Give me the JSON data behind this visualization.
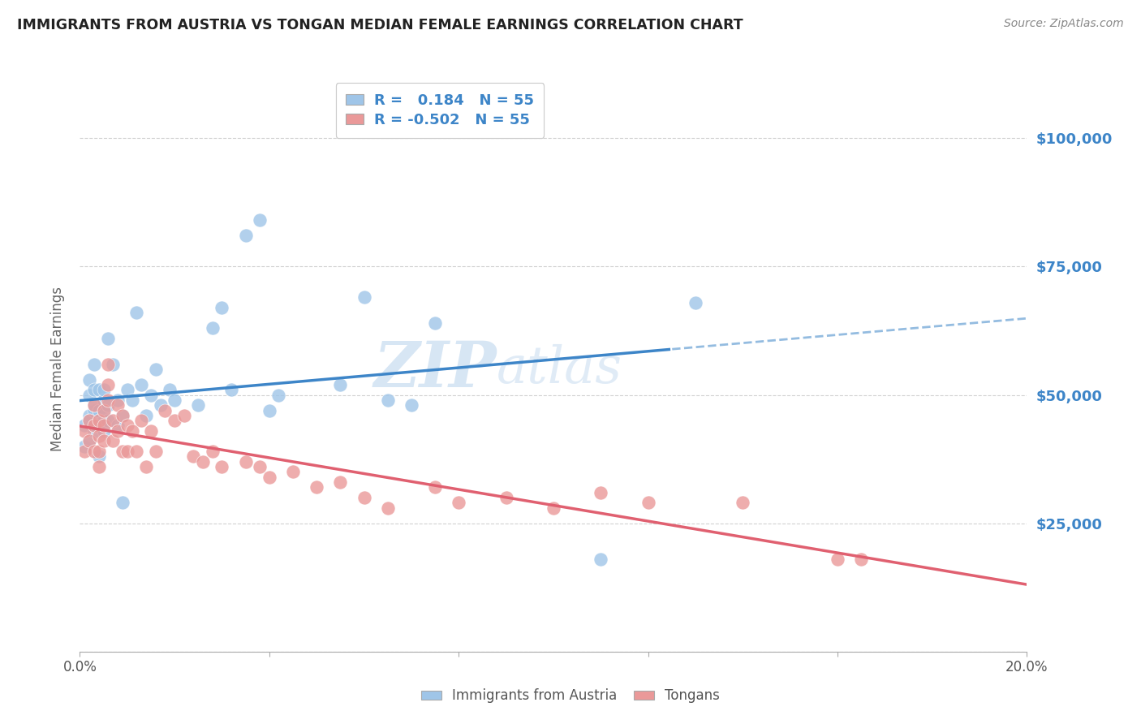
{
  "title": "IMMIGRANTS FROM AUSTRIA VS TONGAN MEDIAN FEMALE EARNINGS CORRELATION CHART",
  "source": "Source: ZipAtlas.com",
  "ylabel": "Median Female Earnings",
  "xlim": [
    0.0,
    0.2
  ],
  "ylim": [
    0,
    110000
  ],
  "legend_label1": "Immigrants from Austria",
  "legend_label2": "Tongans",
  "R1": 0.184,
  "N1": 55,
  "R2": -0.502,
  "N2": 55,
  "color_austria": "#9fc5e8",
  "color_tongan": "#ea9999",
  "color_austria_line": "#3d85c8",
  "color_tongan_line": "#e06070",
  "watermark_text": "ZIP",
  "watermark_text2": "atlas",
  "background_color": "#ffffff",
  "grid_color": "#cccccc",
  "austria_x": [
    0.001,
    0.001,
    0.002,
    0.002,
    0.002,
    0.002,
    0.002,
    0.003,
    0.003,
    0.003,
    0.003,
    0.003,
    0.003,
    0.004,
    0.004,
    0.004,
    0.004,
    0.005,
    0.005,
    0.005,
    0.005,
    0.005,
    0.006,
    0.006,
    0.006,
    0.007,
    0.008,
    0.008,
    0.009,
    0.009,
    0.01,
    0.011,
    0.012,
    0.013,
    0.014,
    0.015,
    0.016,
    0.017,
    0.019,
    0.02,
    0.025,
    0.028,
    0.03,
    0.032,
    0.035,
    0.038,
    0.04,
    0.042,
    0.055,
    0.06,
    0.065,
    0.07,
    0.075,
    0.11,
    0.13
  ],
  "austria_y": [
    44000,
    40000,
    46000,
    50000,
    53000,
    45000,
    41000,
    47000,
    51000,
    43000,
    56000,
    48000,
    44000,
    45000,
    47000,
    51000,
    38000,
    49000,
    45000,
    43000,
    51000,
    47000,
    61000,
    45000,
    48000,
    56000,
    49000,
    44000,
    29000,
    46000,
    51000,
    49000,
    66000,
    52000,
    46000,
    50000,
    55000,
    48000,
    51000,
    49000,
    48000,
    63000,
    67000,
    51000,
    81000,
    84000,
    47000,
    50000,
    52000,
    69000,
    49000,
    48000,
    64000,
    18000,
    68000
  ],
  "tongan_x": [
    0.001,
    0.001,
    0.002,
    0.002,
    0.003,
    0.003,
    0.003,
    0.004,
    0.004,
    0.004,
    0.004,
    0.005,
    0.005,
    0.005,
    0.006,
    0.006,
    0.006,
    0.007,
    0.007,
    0.008,
    0.008,
    0.009,
    0.009,
    0.01,
    0.01,
    0.011,
    0.012,
    0.013,
    0.014,
    0.015,
    0.016,
    0.018,
    0.02,
    0.022,
    0.024,
    0.026,
    0.028,
    0.03,
    0.035,
    0.038,
    0.04,
    0.045,
    0.05,
    0.055,
    0.06,
    0.065,
    0.075,
    0.08,
    0.09,
    0.1,
    0.11,
    0.12,
    0.14,
    0.16,
    0.165
  ],
  "tongan_y": [
    43000,
    39000,
    45000,
    41000,
    48000,
    44000,
    39000,
    45000,
    42000,
    39000,
    36000,
    47000,
    44000,
    41000,
    56000,
    52000,
    49000,
    45000,
    41000,
    48000,
    43000,
    46000,
    39000,
    44000,
    39000,
    43000,
    39000,
    45000,
    36000,
    43000,
    39000,
    47000,
    45000,
    46000,
    38000,
    37000,
    39000,
    36000,
    37000,
    36000,
    34000,
    35000,
    32000,
    33000,
    30000,
    28000,
    32000,
    29000,
    30000,
    28000,
    31000,
    29000,
    29000,
    18000,
    18000
  ]
}
